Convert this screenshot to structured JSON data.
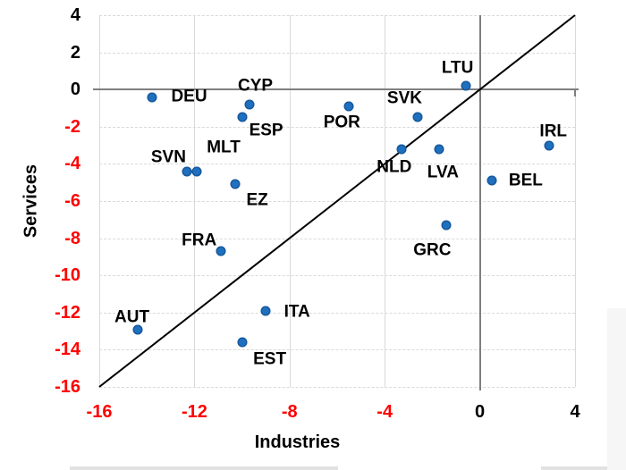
{
  "chart_data": {
    "type": "scatter",
    "title": "",
    "xlabel": "Industries",
    "ylabel": "Services",
    "xlim": [
      -16,
      4
    ],
    "ylim": [
      -16,
      4
    ],
    "x_ticks": [
      -16,
      -12,
      -8,
      -4,
      0,
      4
    ],
    "y_ticks": [
      4,
      2,
      0,
      -2,
      -4,
      -6,
      -8,
      -10,
      -12,
      -14,
      -16
    ],
    "grid": true,
    "legend": false,
    "marker_color": "#1F70BE",
    "marker_edge_color": "#14599F",
    "tick_color_positive": "#000000",
    "tick_color_negative": "#FF0000",
    "gridline_color": "#d9d9d9",
    "zero_line_color": "#7f7f7f",
    "reference_line": {
      "type": "identity",
      "from": [
        -16,
        -16
      ],
      "to": [
        4,
        4
      ],
      "color": "#000000"
    },
    "series": [
      {
        "name": "countries",
        "points": [
          {
            "label": "DEU",
            "x": -13.8,
            "y": -0.4,
            "label_dx": 42,
            "label_dy": -1
          },
          {
            "label": "CYP",
            "x": -9.7,
            "y": -0.8,
            "label_dx": 7,
            "label_dy": -21
          },
          {
            "label": "ESP",
            "x": -10.0,
            "y": -1.5,
            "label_dx": 27,
            "label_dy": 15
          },
          {
            "label": "SVN",
            "x": -12.3,
            "y": -4.4,
            "label_dx": -21,
            "label_dy": -16
          },
          {
            "label": "MLT",
            "x": -11.9,
            "y": -4.4,
            "label_dx": 30,
            "label_dy": -27
          },
          {
            "label": "EZ",
            "x": -10.3,
            "y": -5.1,
            "label_dx": 25,
            "label_dy": 18
          },
          {
            "label": "FRA",
            "x": -10.9,
            "y": -8.7,
            "label_dx": -24,
            "label_dy": -12
          },
          {
            "label": "AUT",
            "x": -14.4,
            "y": -12.9,
            "label_dx": -6,
            "label_dy": -14
          },
          {
            "label": "ITA",
            "x": -9.0,
            "y": -11.9,
            "label_dx": 35,
            "label_dy": 1
          },
          {
            "label": "EST",
            "x": -10.0,
            "y": -13.6,
            "label_dx": 31,
            "label_dy": 19
          },
          {
            "label": "POR",
            "x": -5.5,
            "y": -0.9,
            "label_dx": -8,
            "label_dy": 18
          },
          {
            "label": "SVK",
            "x": -2.6,
            "y": -1.5,
            "label_dx": -15,
            "label_dy": -21
          },
          {
            "label": "LTU",
            "x": -0.6,
            "y": 0.2,
            "label_dx": -9,
            "label_dy": -20
          },
          {
            "label": "NLD",
            "x": -3.3,
            "y": -3.2,
            "label_dx": -8,
            "label_dy": 20
          },
          {
            "label": "LVA",
            "x": -1.7,
            "y": -3.2,
            "label_dx": 4,
            "label_dy": 26
          },
          {
            "label": "GRC",
            "x": -1.4,
            "y": -7.3,
            "label_dx": -16,
            "label_dy": 28
          },
          {
            "label": "BEL",
            "x": 0.5,
            "y": -4.9,
            "label_dx": 38,
            "label_dy": 0
          },
          {
            "label": "IRL",
            "x": 2.9,
            "y": -3.0,
            "label_dx": 5,
            "label_dy": -16
          }
        ]
      }
    ]
  }
}
